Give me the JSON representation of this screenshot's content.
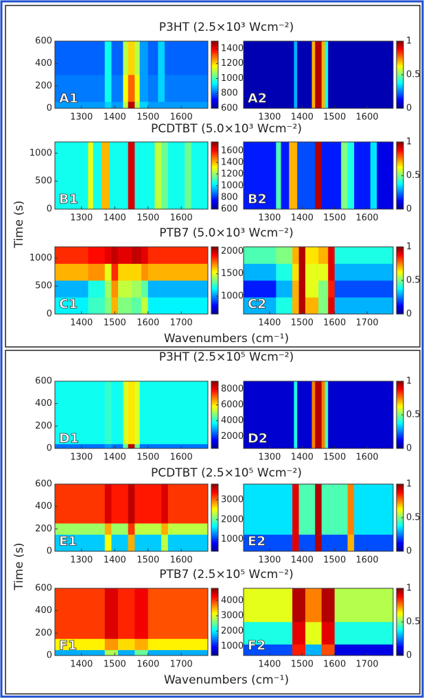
{
  "chart_data": [
    {
      "type": "heatmap",
      "title": "P3HT (2.5×10³ Wcm⁻²)",
      "xlim": [
        1220,
        1680
      ],
      "xticks": [
        1300,
        1400,
        1500,
        1600
      ],
      "ylim": [
        0,
        600
      ],
      "yticks": [
        0,
        200,
        400,
        600
      ],
      "panels": [
        {
          "label": "A1",
          "clim": [
            600,
            1500
          ],
          "cticks": [
            600,
            800,
            1000,
            1200,
            1400
          ],
          "xbins": [
            1220,
            1370,
            1390,
            1425,
            1440,
            1460,
            1475,
            1500,
            1530,
            1550,
            1680
          ],
          "ybins": [
            0,
            60,
            300,
            600
          ],
          "z": [
            [
              850,
              900,
              850,
              1100,
              1450,
              1100,
              900,
              850,
              850,
              850
            ],
            [
              820,
              950,
              820,
              1150,
              1300,
              1150,
              850,
              820,
              900,
              820
            ],
            [
              800,
              950,
              800,
              1100,
              1200,
              1100,
              850,
              800,
              900,
              800
            ]
          ]
        },
        {
          "label": "A2",
          "clim": [
            0,
            1
          ],
          "cticks": [
            0,
            0.5,
            1
          ],
          "xbins": [
            1220,
            1375,
            1385,
            1430,
            1440,
            1460,
            1470,
            1480,
            1680
          ],
          "ybins": [
            0,
            600
          ],
          "z": [
            [
              0.05,
              0.3,
              0.05,
              0.7,
              0.95,
              0.7,
              0.4,
              0.05
            ]
          ]
        }
      ]
    },
    {
      "type": "heatmap",
      "title": "PCDTBT (5.0×10³ Wcm⁻²)",
      "xlim": [
        1220,
        1680
      ],
      "xticks": [
        1300,
        1400,
        1500,
        1600
      ],
      "ylim": [
        0,
        1200
      ],
      "yticks": [
        0,
        500,
        1000
      ],
      "y_label": "Time (s)",
      "panels": [
        {
          "label": "B1",
          "clim": [
            600,
            1750
          ],
          "cticks": [
            600,
            800,
            1000,
            1200,
            1400,
            1600
          ],
          "xbins": [
            1220,
            1320,
            1335,
            1360,
            1385,
            1440,
            1460,
            1520,
            1540,
            1560,
            1610,
            1630,
            1680
          ],
          "ybins": [
            0,
            1200
          ],
          "z": [
            [
              1050,
              1300,
              1050,
              1400,
              1050,
              1650,
              1050,
              1250,
              1150,
              1050,
              1150,
              1050
            ]
          ]
        },
        {
          "label": "B2",
          "clim": [
            0,
            1
          ],
          "cticks": [
            0,
            0.5,
            1
          ],
          "xbins": [
            1220,
            1320,
            1335,
            1360,
            1385,
            1440,
            1460,
            1520,
            1540,
            1560,
            1610,
            1630,
            1680
          ],
          "ybins": [
            0,
            1200
          ],
          "z": [
            [
              0.15,
              0.45,
              0.15,
              0.7,
              0.2,
              0.95,
              0.15,
              0.5,
              0.4,
              0.15,
              0.35,
              0.1
            ]
          ]
        }
      ]
    },
    {
      "type": "heatmap",
      "title": "PTB7 (5.0×10³ Wcm⁻²)",
      "xlim": [
        1320,
        1780
      ],
      "xticks": [
        1400,
        1500,
        1600,
        1700
      ],
      "ylim": [
        0,
        1200
      ],
      "yticks": [
        0,
        500,
        1000
      ],
      "x_label": "Wavenumbers (cm⁻¹)",
      "panels": [
        {
          "label": "C1",
          "clim": [
            600,
            2100
          ],
          "cticks": [
            1000,
            1500,
            2000
          ],
          "xbins": [
            1320,
            1420,
            1470,
            1490,
            1510,
            1550,
            1580,
            1600,
            1780
          ],
          "ybins": [
            0,
            300,
            600,
            900,
            1200
          ],
          "z": [
            [
              1150,
              1250,
              1350,
              1650,
              1350,
              1300,
              1450,
              1150
            ],
            [
              1050,
              1200,
              1400,
              1700,
              1450,
              1400,
              1300,
              1050
            ],
            [
              1650,
              1700,
              1500,
              1850,
              1600,
              1600,
              1700,
              1650
            ],
            [
              1850,
              1900,
              1950,
              2000,
              1950,
              2000,
              1950,
              1850
            ]
          ]
        },
        {
          "label": "C2",
          "clim": [
            0,
            1
          ],
          "cticks": [
            0,
            0.5,
            1
          ],
          "xbins": [
            1320,
            1420,
            1470,
            1490,
            1510,
            1550,
            1580,
            1600,
            1780
          ],
          "ybins": [
            0,
            300,
            600,
            900,
            1200
          ],
          "z": [
            [
              0.3,
              0.4,
              0.7,
              0.95,
              0.7,
              0.5,
              0.9,
              0.3
            ],
            [
              0.15,
              0.3,
              0.7,
              0.95,
              0.6,
              0.5,
              0.85,
              0.2
            ],
            [
              0.3,
              0.4,
              0.65,
              0.95,
              0.6,
              0.6,
              0.9,
              0.3
            ],
            [
              0.45,
              0.5,
              0.7,
              0.95,
              0.65,
              0.7,
              0.9,
              0.4
            ]
          ]
        }
      ]
    },
    {
      "type": "heatmap",
      "title": "P3HT (2.5×10⁵ Wcm⁻²)",
      "xlim": [
        1220,
        1680
      ],
      "xticks": [
        1300,
        1400,
        1500,
        1600
      ],
      "ylim": [
        0,
        600
      ],
      "yticks": [
        0,
        200,
        400,
        600
      ],
      "panels": [
        {
          "label": "D1",
          "clim": [
            500,
            9000
          ],
          "cticks": [
            2000,
            4000,
            6000,
            8000
          ],
          "xbins": [
            1220,
            1370,
            1390,
            1425,
            1440,
            1460,
            1475,
            1680
          ],
          "ybins": [
            0,
            40,
            600
          ],
          "z": [
            [
              2500,
              2800,
              2500,
              4500,
              8500,
              4500,
              2500
            ],
            [
              3800,
              4100,
              3800,
              5500,
              6000,
              5500,
              3800
            ]
          ]
        },
        {
          "label": "D2",
          "clim": [
            0,
            1
          ],
          "cticks": [
            0,
            0.5,
            1
          ],
          "xbins": [
            1220,
            1375,
            1385,
            1430,
            1440,
            1460,
            1470,
            1480,
            1680
          ],
          "ybins": [
            0,
            600
          ],
          "z": [
            [
              0.08,
              0.4,
              0.08,
              0.75,
              0.95,
              0.75,
              0.45,
              0.08
            ]
          ]
        }
      ]
    },
    {
      "type": "heatmap",
      "title": "PCDTBT (2.5×10⁵ Wcm⁻²)",
      "xlim": [
        1220,
        1680
      ],
      "xticks": [
        1300,
        1400,
        1500,
        1600
      ],
      "ylim": [
        0,
        600
      ],
      "yticks": [
        0,
        200,
        400,
        600
      ],
      "y_label": "Time (s)",
      "panels": [
        {
          "label": "E1",
          "clim": [
            400,
            3800
          ],
          "cticks": [
            1000,
            2000,
            3000
          ],
          "xbins": [
            1220,
            1370,
            1390,
            1440,
            1460,
            1540,
            1560,
            1680
          ],
          "ybins": [
            0,
            150,
            250,
            600
          ],
          "z": [
            [
              1500,
              2500,
              1500,
              2800,
              1500,
              2300,
              1500
            ],
            [
              2200,
              2800,
              2200,
              3200,
              2300,
              2800,
              2300
            ],
            [
              3200,
              3500,
              3300,
              3600,
              3300,
              3500,
              3200
            ]
          ]
        },
        {
          "label": "E2",
          "clim": [
            0,
            1
          ],
          "cticks": [
            0,
            0.5,
            1
          ],
          "xbins": [
            1220,
            1370,
            1390,
            1440,
            1460,
            1540,
            1560,
            1680
          ],
          "ybins": [
            0,
            150,
            600
          ],
          "z": [
            [
              0.2,
              0.9,
              0.2,
              0.95,
              0.2,
              0.7,
              0.2
            ],
            [
              0.35,
              0.9,
              0.45,
              0.95,
              0.45,
              0.75,
              0.35
            ]
          ]
        }
      ]
    },
    {
      "type": "heatmap",
      "title": "PTB7 (2.5×10⁵ Wcm⁻²)",
      "xlim": [
        1320,
        1780
      ],
      "xticks": [
        1400,
        1500,
        1600,
        1700
      ],
      "ylim": [
        0,
        600
      ],
      "yticks": [
        0,
        200,
        400,
        600
      ],
      "x_label": "Wavenumbers (cm⁻¹)",
      "panels": [
        {
          "label": "F1",
          "clim": [
            400,
            4800
          ],
          "cticks": [
            1000,
            2000,
            3000,
            4000
          ],
          "xbins": [
            1320,
            1470,
            1510,
            1560,
            1600,
            1780
          ],
          "ybins": [
            0,
            50,
            150,
            600
          ],
          "z": [
            [
              1700,
              2800,
              1700,
              2500,
              1700
            ],
            [
              3200,
              3600,
              3300,
              3500,
              3200
            ],
            [
              4000,
              4400,
              4100,
              4300,
              3900
            ]
          ]
        },
        {
          "label": "F2",
          "clim": [
            0,
            1
          ],
          "cticks": [
            0,
            0.5,
            1
          ],
          "xbins": [
            1320,
            1470,
            1510,
            1560,
            1600,
            1780
          ],
          "ybins": [
            0,
            100,
            300,
            600
          ],
          "z": [
            [
              0.2,
              0.85,
              0.3,
              0.8,
              0.1
            ],
            [
              0.4,
              0.9,
              0.6,
              0.9,
              0.4
            ],
            [
              0.6,
              0.95,
              0.75,
              0.95,
              0.55
            ]
          ]
        }
      ]
    }
  ]
}
